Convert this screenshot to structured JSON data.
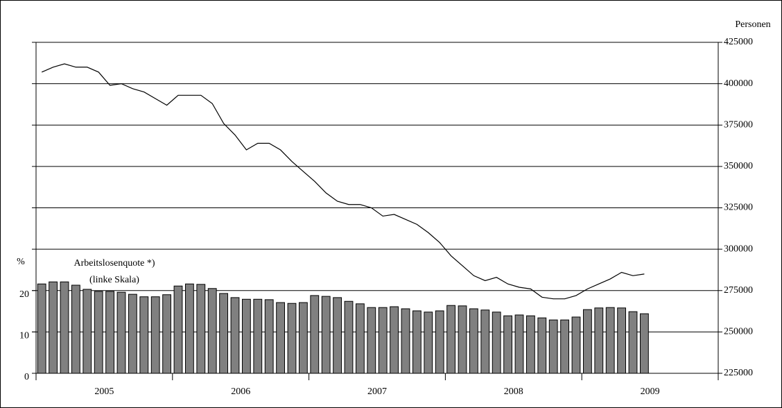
{
  "chart_data": {
    "type": "combo",
    "y_label": "%",
    "y2_label": "Personen",
    "annotations": [
      "Arbeitslosenquote *)",
      "(linke Skala)"
    ],
    "year_labels": [
      "2005",
      "2006",
      "2007",
      "2008",
      "2009"
    ],
    "ylim": [
      0,
      80
    ],
    "yticks": [
      0,
      10,
      20
    ],
    "y2lim": [
      225000,
      425000
    ],
    "y2ticks": [
      225000,
      250000,
      275000,
      300000,
      325000,
      350000,
      375000,
      400000,
      425000
    ],
    "grid": true,
    "series": [
      {
        "type": "bar",
        "axis": "y",
        "color": "#808080",
        "values": [
          21.6,
          22.1,
          22.1,
          21.3,
          20.3,
          19.8,
          19.8,
          19.6,
          19.1,
          18.5,
          18.5,
          19.0,
          21.1,
          21.6,
          21.5,
          20.5,
          19.3,
          18.3,
          17.9,
          17.9,
          17.8,
          17.1,
          16.9,
          17.1,
          18.8,
          18.6,
          18.3,
          17.4,
          16.8,
          15.9,
          15.9,
          16.1,
          15.6,
          15.1,
          14.8,
          15.1,
          16.4,
          16.3,
          15.6,
          15.3,
          14.8,
          13.9,
          14.1,
          13.9,
          13.4,
          12.9,
          12.9,
          13.6,
          15.4,
          15.8,
          15.9,
          15.8,
          14.9,
          14.4
        ]
      },
      {
        "type": "line",
        "axis": "y2",
        "color": "#000000",
        "values": [
          407000,
          410000,
          412000,
          410000,
          410000,
          407000,
          399000,
          400000,
          397000,
          395000,
          391000,
          387000,
          393000,
          393000,
          393000,
          388000,
          376000,
          369000,
          360000,
          364000,
          364000,
          360000,
          353000,
          347000,
          341000,
          334000,
          329000,
          327000,
          327000,
          325000,
          320000,
          321000,
          318000,
          315000,
          310000,
          304000,
          296000,
          290000,
          284000,
          281000,
          283000,
          279000,
          277000,
          276000,
          271000,
          270000,
          270000,
          272000,
          276000,
          279000,
          282000,
          286000,
          284000,
          285000
        ]
      }
    ]
  }
}
